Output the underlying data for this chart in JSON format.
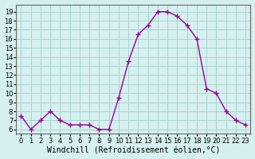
{
  "hours": [
    0,
    1,
    2,
    3,
    4,
    5,
    6,
    7,
    8,
    9,
    10,
    11,
    12,
    13,
    14,
    15,
    16,
    17,
    18,
    19,
    20,
    21,
    22,
    23
  ],
  "values": [
    7.5,
    6.0,
    7.0,
    8.0,
    7.0,
    6.5,
    6.5,
    6.5,
    6.0,
    6.0,
    9.5,
    13.5,
    16.5,
    17.5,
    19.0,
    19.0,
    18.5,
    17.5,
    16.0,
    10.5,
    10.0,
    8.0,
    7.0,
    6.5
  ],
  "line_color": "#990099",
  "marker": "+",
  "bg_color": "#d6f0ef",
  "grid_color": "#aad4d2",
  "title": "Windchill (Refroidissement éolien,°C)",
  "ylabel_ticks": [
    6,
    7,
    8,
    9,
    10,
    11,
    12,
    13,
    14,
    15,
    16,
    17,
    18,
    19
  ],
  "ylim": [
    5.5,
    19.8
  ],
  "xlim": [
    -0.5,
    23.5
  ],
  "xlabel_ticks": [
    0,
    1,
    2,
    3,
    4,
    5,
    6,
    7,
    8,
    9,
    10,
    11,
    12,
    13,
    14,
    15,
    16,
    17,
    18,
    19,
    20,
    21,
    22,
    23
  ],
  "tick_fontsize": 6,
  "xlabel_fontsize": 7
}
